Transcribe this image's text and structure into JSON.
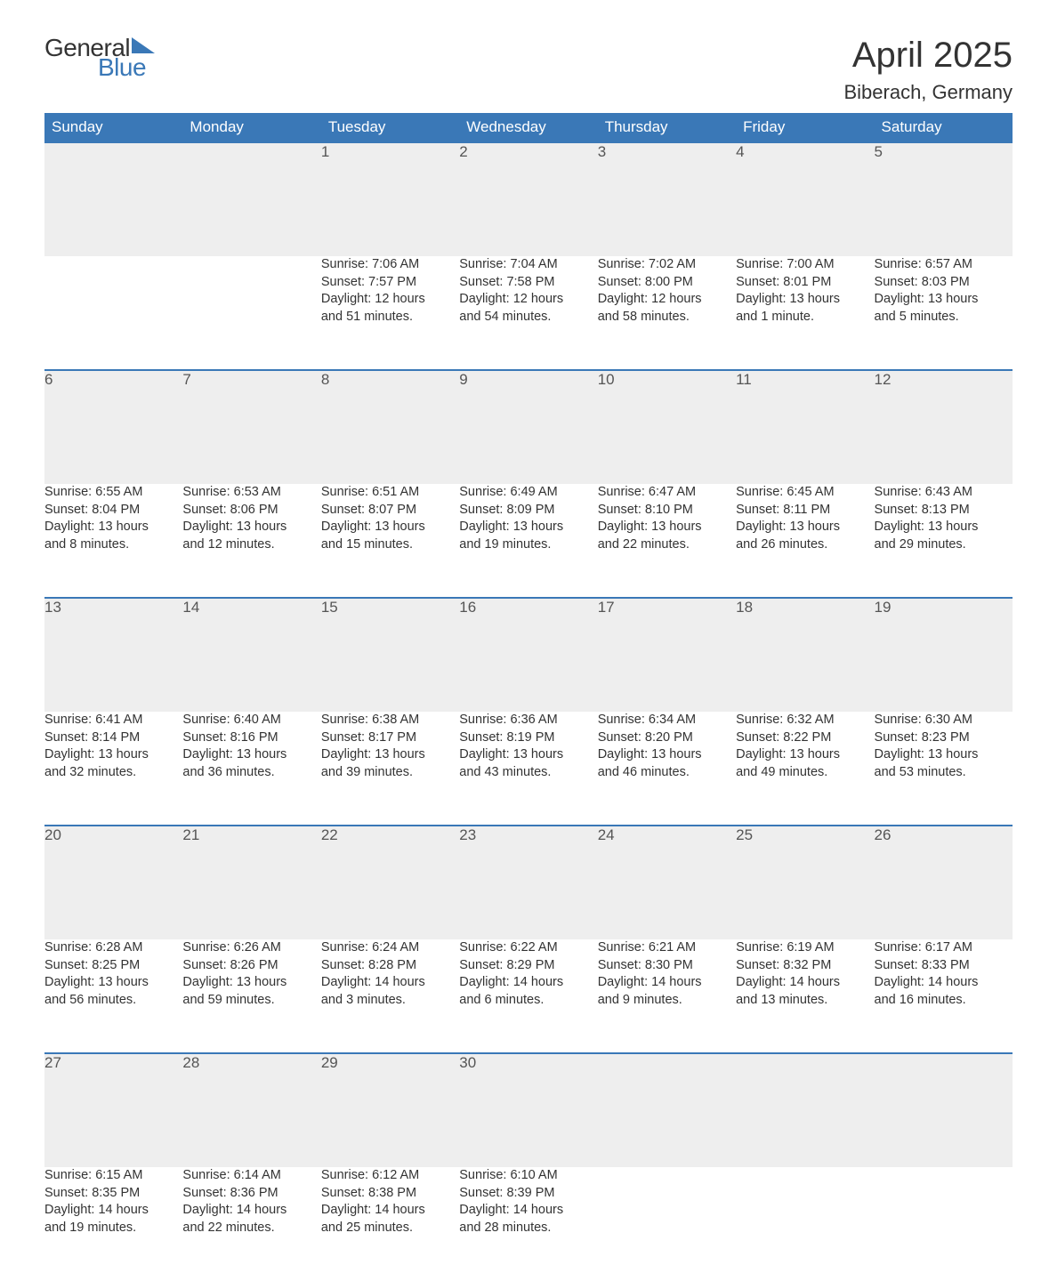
{
  "logo": {
    "text_general": "General",
    "text_blue": "Blue",
    "triangle_color": "#3a78b7"
  },
  "title": {
    "month": "April 2025",
    "location": "Biberach, Germany"
  },
  "colors": {
    "header_bg": "#3a78b7",
    "header_text": "#ffffff",
    "daynum_bg": "#eeeeee",
    "row_border": "#3a78b7",
    "body_text": "#333333",
    "background": "#ffffff"
  },
  "typography": {
    "month_title_fontsize": 40,
    "location_fontsize": 22,
    "weekday_fontsize": 17,
    "daynum_fontsize": 17,
    "body_fontsize": 14.5,
    "logo_fontsize": 28
  },
  "weekdays": [
    "Sunday",
    "Monday",
    "Tuesday",
    "Wednesday",
    "Thursday",
    "Friday",
    "Saturday"
  ],
  "weeks": [
    [
      null,
      null,
      {
        "n": "1",
        "sr": "Sunrise: 7:06 AM",
        "ss": "Sunset: 7:57 PM",
        "d1": "Daylight: 12 hours",
        "d2": "and 51 minutes."
      },
      {
        "n": "2",
        "sr": "Sunrise: 7:04 AM",
        "ss": "Sunset: 7:58 PM",
        "d1": "Daylight: 12 hours",
        "d2": "and 54 minutes."
      },
      {
        "n": "3",
        "sr": "Sunrise: 7:02 AM",
        "ss": "Sunset: 8:00 PM",
        "d1": "Daylight: 12 hours",
        "d2": "and 58 minutes."
      },
      {
        "n": "4",
        "sr": "Sunrise: 7:00 AM",
        "ss": "Sunset: 8:01 PM",
        "d1": "Daylight: 13 hours",
        "d2": "and 1 minute."
      },
      {
        "n": "5",
        "sr": "Sunrise: 6:57 AM",
        "ss": "Sunset: 8:03 PM",
        "d1": "Daylight: 13 hours",
        "d2": "and 5 minutes."
      }
    ],
    [
      {
        "n": "6",
        "sr": "Sunrise: 6:55 AM",
        "ss": "Sunset: 8:04 PM",
        "d1": "Daylight: 13 hours",
        "d2": "and 8 minutes."
      },
      {
        "n": "7",
        "sr": "Sunrise: 6:53 AM",
        "ss": "Sunset: 8:06 PM",
        "d1": "Daylight: 13 hours",
        "d2": "and 12 minutes."
      },
      {
        "n": "8",
        "sr": "Sunrise: 6:51 AM",
        "ss": "Sunset: 8:07 PM",
        "d1": "Daylight: 13 hours",
        "d2": "and 15 minutes."
      },
      {
        "n": "9",
        "sr": "Sunrise: 6:49 AM",
        "ss": "Sunset: 8:09 PM",
        "d1": "Daylight: 13 hours",
        "d2": "and 19 minutes."
      },
      {
        "n": "10",
        "sr": "Sunrise: 6:47 AM",
        "ss": "Sunset: 8:10 PM",
        "d1": "Daylight: 13 hours",
        "d2": "and 22 minutes."
      },
      {
        "n": "11",
        "sr": "Sunrise: 6:45 AM",
        "ss": "Sunset: 8:11 PM",
        "d1": "Daylight: 13 hours",
        "d2": "and 26 minutes."
      },
      {
        "n": "12",
        "sr": "Sunrise: 6:43 AM",
        "ss": "Sunset: 8:13 PM",
        "d1": "Daylight: 13 hours",
        "d2": "and 29 minutes."
      }
    ],
    [
      {
        "n": "13",
        "sr": "Sunrise: 6:41 AM",
        "ss": "Sunset: 8:14 PM",
        "d1": "Daylight: 13 hours",
        "d2": "and 32 minutes."
      },
      {
        "n": "14",
        "sr": "Sunrise: 6:40 AM",
        "ss": "Sunset: 8:16 PM",
        "d1": "Daylight: 13 hours",
        "d2": "and 36 minutes."
      },
      {
        "n": "15",
        "sr": "Sunrise: 6:38 AM",
        "ss": "Sunset: 8:17 PM",
        "d1": "Daylight: 13 hours",
        "d2": "and 39 minutes."
      },
      {
        "n": "16",
        "sr": "Sunrise: 6:36 AM",
        "ss": "Sunset: 8:19 PM",
        "d1": "Daylight: 13 hours",
        "d2": "and 43 minutes."
      },
      {
        "n": "17",
        "sr": "Sunrise: 6:34 AM",
        "ss": "Sunset: 8:20 PM",
        "d1": "Daylight: 13 hours",
        "d2": "and 46 minutes."
      },
      {
        "n": "18",
        "sr": "Sunrise: 6:32 AM",
        "ss": "Sunset: 8:22 PM",
        "d1": "Daylight: 13 hours",
        "d2": "and 49 minutes."
      },
      {
        "n": "19",
        "sr": "Sunrise: 6:30 AM",
        "ss": "Sunset: 8:23 PM",
        "d1": "Daylight: 13 hours",
        "d2": "and 53 minutes."
      }
    ],
    [
      {
        "n": "20",
        "sr": "Sunrise: 6:28 AM",
        "ss": "Sunset: 8:25 PM",
        "d1": "Daylight: 13 hours",
        "d2": "and 56 minutes."
      },
      {
        "n": "21",
        "sr": "Sunrise: 6:26 AM",
        "ss": "Sunset: 8:26 PM",
        "d1": "Daylight: 13 hours",
        "d2": "and 59 minutes."
      },
      {
        "n": "22",
        "sr": "Sunrise: 6:24 AM",
        "ss": "Sunset: 8:28 PM",
        "d1": "Daylight: 14 hours",
        "d2": "and 3 minutes."
      },
      {
        "n": "23",
        "sr": "Sunrise: 6:22 AM",
        "ss": "Sunset: 8:29 PM",
        "d1": "Daylight: 14 hours",
        "d2": "and 6 minutes."
      },
      {
        "n": "24",
        "sr": "Sunrise: 6:21 AM",
        "ss": "Sunset: 8:30 PM",
        "d1": "Daylight: 14 hours",
        "d2": "and 9 minutes."
      },
      {
        "n": "25",
        "sr": "Sunrise: 6:19 AM",
        "ss": "Sunset: 8:32 PM",
        "d1": "Daylight: 14 hours",
        "d2": "and 13 minutes."
      },
      {
        "n": "26",
        "sr": "Sunrise: 6:17 AM",
        "ss": "Sunset: 8:33 PM",
        "d1": "Daylight: 14 hours",
        "d2": "and 16 minutes."
      }
    ],
    [
      {
        "n": "27",
        "sr": "Sunrise: 6:15 AM",
        "ss": "Sunset: 8:35 PM",
        "d1": "Daylight: 14 hours",
        "d2": "and 19 minutes."
      },
      {
        "n": "28",
        "sr": "Sunrise: 6:14 AM",
        "ss": "Sunset: 8:36 PM",
        "d1": "Daylight: 14 hours",
        "d2": "and 22 minutes."
      },
      {
        "n": "29",
        "sr": "Sunrise: 6:12 AM",
        "ss": "Sunset: 8:38 PM",
        "d1": "Daylight: 14 hours",
        "d2": "and 25 minutes."
      },
      {
        "n": "30",
        "sr": "Sunrise: 6:10 AM",
        "ss": "Sunset: 8:39 PM",
        "d1": "Daylight: 14 hours",
        "d2": "and 28 minutes."
      },
      null,
      null,
      null
    ]
  ]
}
